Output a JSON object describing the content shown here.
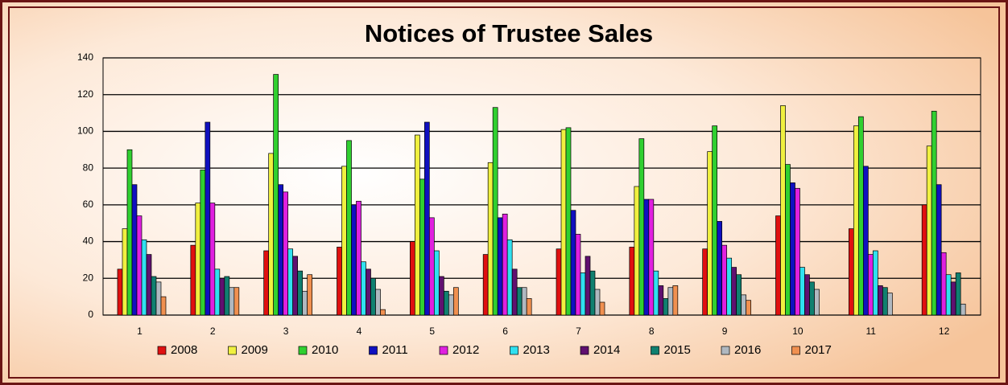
{
  "chart_data": {
    "type": "bar",
    "title": "Notices of Trustee Sales",
    "categories": [
      "1",
      "2",
      "3",
      "4",
      "5",
      "6",
      "7",
      "8",
      "9",
      "10",
      "11",
      "12"
    ],
    "ylim": [
      0,
      140
    ],
    "yticks": [
      0,
      20,
      40,
      60,
      80,
      100,
      120,
      140
    ],
    "grid": true,
    "legend": "bottom",
    "series": [
      {
        "name": "2008",
        "color": "#e01010",
        "values": [
          25,
          38,
          35,
          37,
          40,
          33,
          36,
          37,
          36,
          54,
          47,
          60
        ]
      },
      {
        "name": "2009",
        "color": "#f0f040",
        "values": [
          47,
          61,
          88,
          81,
          98,
          83,
          101,
          70,
          89,
          114,
          103,
          92
        ]
      },
      {
        "name": "2010",
        "color": "#30d030",
        "values": [
          90,
          79,
          131,
          95,
          74,
          113,
          102,
          96,
          103,
          82,
          108,
          111
        ]
      },
      {
        "name": "2011",
        "color": "#1010c0",
        "values": [
          71,
          105,
          71,
          60,
          105,
          53,
          57,
          63,
          51,
          72,
          81,
          71
        ]
      },
      {
        "name": "2012",
        "color": "#e020e0",
        "values": [
          54,
          61,
          67,
          62,
          53,
          55,
          44,
          63,
          38,
          69,
          33,
          34
        ]
      },
      {
        "name": "2013",
        "color": "#30e0f0",
        "values": [
          41,
          25,
          36,
          29,
          35,
          41,
          23,
          24,
          31,
          26,
          35,
          22
        ]
      },
      {
        "name": "2014",
        "color": "#601070",
        "values": [
          33,
          20,
          32,
          25,
          21,
          25,
          32,
          16,
          26,
          22,
          16,
          18
        ]
      },
      {
        "name": "2015",
        "color": "#108070",
        "values": [
          21,
          21,
          24,
          20,
          13,
          15,
          24,
          9,
          22,
          18,
          15,
          23
        ]
      },
      {
        "name": "2016",
        "color": "#b0b8c0",
        "values": [
          18,
          15,
          13,
          14,
          11,
          15,
          14,
          15,
          11,
          14,
          12,
          6
        ]
      },
      {
        "name": "2017",
        "color": "#f09050",
        "values": [
          10,
          15,
          22,
          3,
          15,
          9,
          7,
          16,
          8,
          null,
          null,
          null
        ]
      }
    ]
  }
}
